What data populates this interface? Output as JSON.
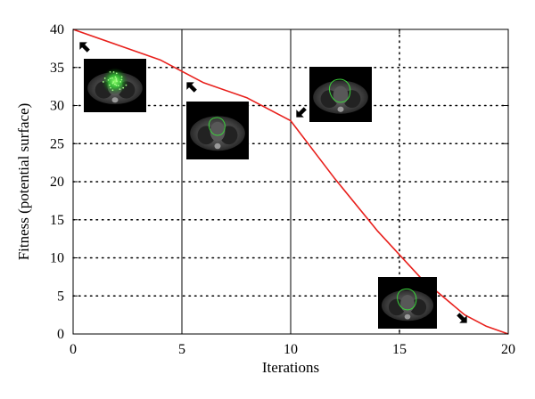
{
  "chart_data": {
    "type": "line",
    "title": "",
    "xlabel": "Iterations",
    "ylabel": "Fitness (potential surface)",
    "xlim": [
      0,
      20
    ],
    "ylim": [
      0,
      40
    ],
    "xticks": [
      0,
      5,
      10,
      15,
      20
    ],
    "yticks": [
      0,
      5,
      10,
      15,
      20,
      25,
      30,
      35,
      40
    ],
    "grid": "dotted",
    "series": [
      {
        "color": "#e8201c",
        "x": [
          0,
          2,
          4,
          6,
          8,
          10,
          12,
          14,
          16,
          18,
          19,
          20
        ],
        "y": [
          40,
          38,
          36,
          33,
          31,
          28,
          20.5,
          13.5,
          7.3,
          2.5,
          1,
          0
        ]
      }
    ],
    "reference_lines_x": [
      5,
      10
    ],
    "highlight_gridline_x": 15,
    "inset_images": [
      {
        "name": "ct-slice-initial-green-cloud",
        "x_at": 0.8,
        "contour": "cloud",
        "arrow_direction": "up-left"
      },
      {
        "name": "ct-slice-iteration-5",
        "x_at": 5.5,
        "contour": "small-outline",
        "arrow_direction": "up-left"
      },
      {
        "name": "ct-slice-iteration-10",
        "x_at": 11.8,
        "contour": "outline",
        "arrow_direction": "down-left"
      },
      {
        "name": "ct-slice-final",
        "x_at": 15.5,
        "contour": "final-outline",
        "arrow_direction": "down-right"
      }
    ],
    "colors": {
      "line": "#e8201c",
      "axis": "#000000",
      "grid": "#000000",
      "contour": "#3bd43b"
    }
  }
}
